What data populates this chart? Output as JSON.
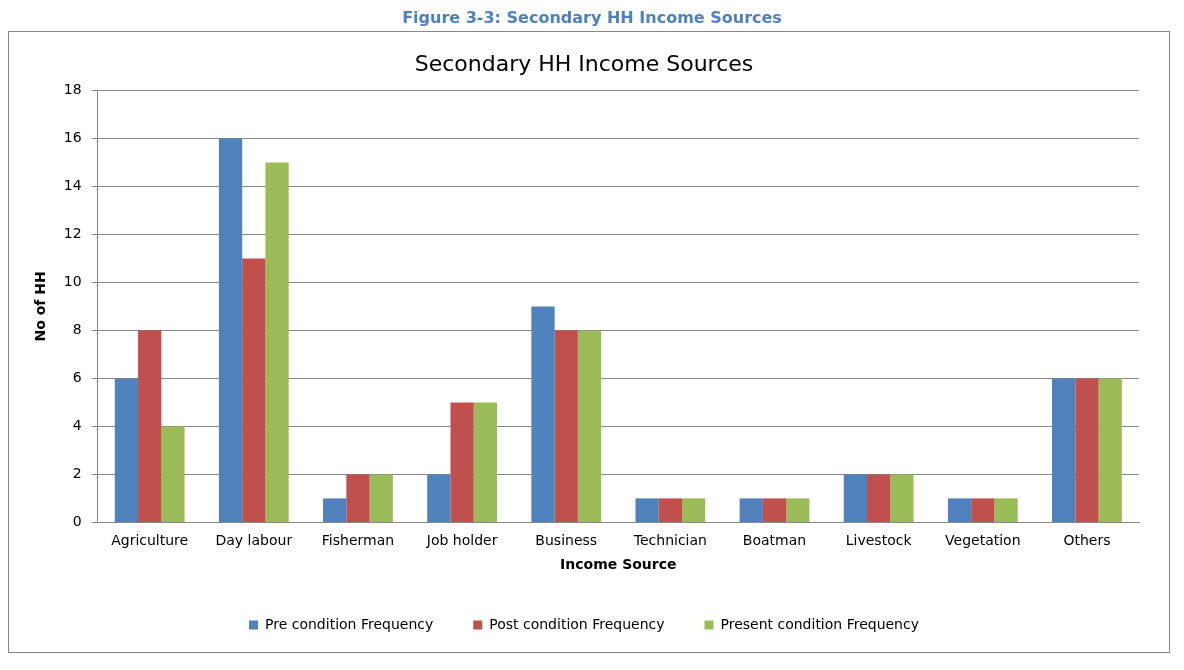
{
  "chart_data": {
    "type": "bar",
    "title": "Secondary HH Income Sources",
    "xlabel": "Income Source",
    "ylabel": "No of HH",
    "annotations": [
      "Figure 3-3: Secondary HH Income Sources"
    ],
    "categories": [
      "Agriculture",
      "Day labour",
      "Fisherman",
      "Job holder",
      "Business",
      "Technician",
      "Boatman",
      "Livestock",
      "Vegetation",
      "Others"
    ],
    "series": [
      {
        "name": "Pre condition Frequency",
        "color": "#4f81bd",
        "values": [
          6,
          16,
          1,
          2,
          9,
          1,
          1,
          2,
          1,
          6
        ]
      },
      {
        "name": "Post condition Frequency",
        "color": "#c0504d",
        "values": [
          8,
          11,
          2,
          5,
          8,
          1,
          1,
          2,
          1,
          6
        ]
      },
      {
        "name": "Present condition Frequency",
        "color": "#9bbb59",
        "values": [
          4,
          15,
          2,
          5,
          8,
          1,
          1,
          2,
          1,
          6
        ]
      }
    ],
    "ylim": [
      0,
      18
    ],
    "yticks": [
      0,
      2,
      4,
      6,
      8,
      10,
      12,
      14,
      16,
      18
    ],
    "grid": "y",
    "legend": "bottom"
  }
}
